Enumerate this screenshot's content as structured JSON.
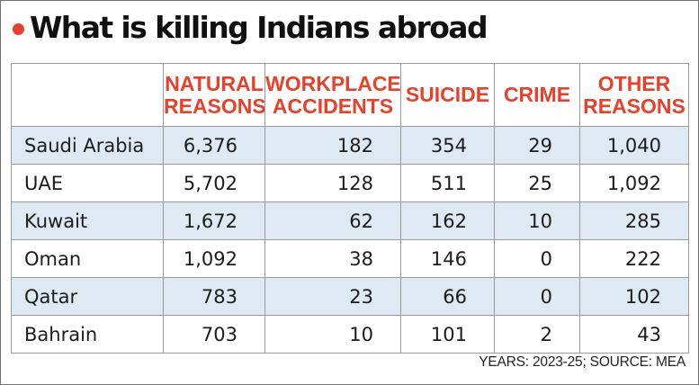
{
  "title": "What is killing Indians abroad",
  "colors": {
    "accent": "#e8402a",
    "row_shade": "#dfe9f4"
  },
  "chart_data": {
    "type": "table",
    "title": "What is killing Indians abroad",
    "columns": [
      "NATURAL REASONS",
      "WORKPLACE ACCIDENTS",
      "SUICIDE",
      "CRIME",
      "OTHER REASONS"
    ],
    "rows": [
      {
        "country": "Saudi Arabia",
        "values": [
          "6,376",
          "182",
          "354",
          "29",
          "1,040"
        ]
      },
      {
        "country": "UAE",
        "values": [
          "5,702",
          "128",
          "511",
          "25",
          "1,092"
        ]
      },
      {
        "country": "Kuwait",
        "values": [
          "1,672",
          "62",
          "162",
          "10",
          "285"
        ]
      },
      {
        "country": "Oman",
        "values": [
          "1,092",
          "38",
          "146",
          "0",
          "222"
        ]
      },
      {
        "country": "Qatar",
        "values": [
          "783",
          "23",
          "66",
          "0",
          "102"
        ]
      },
      {
        "country": "Bahrain",
        "values": [
          "703",
          "10",
          "101",
          "2",
          "43"
        ]
      }
    ],
    "source": "YEARS: 2023-25; SOURCE: MEA"
  }
}
